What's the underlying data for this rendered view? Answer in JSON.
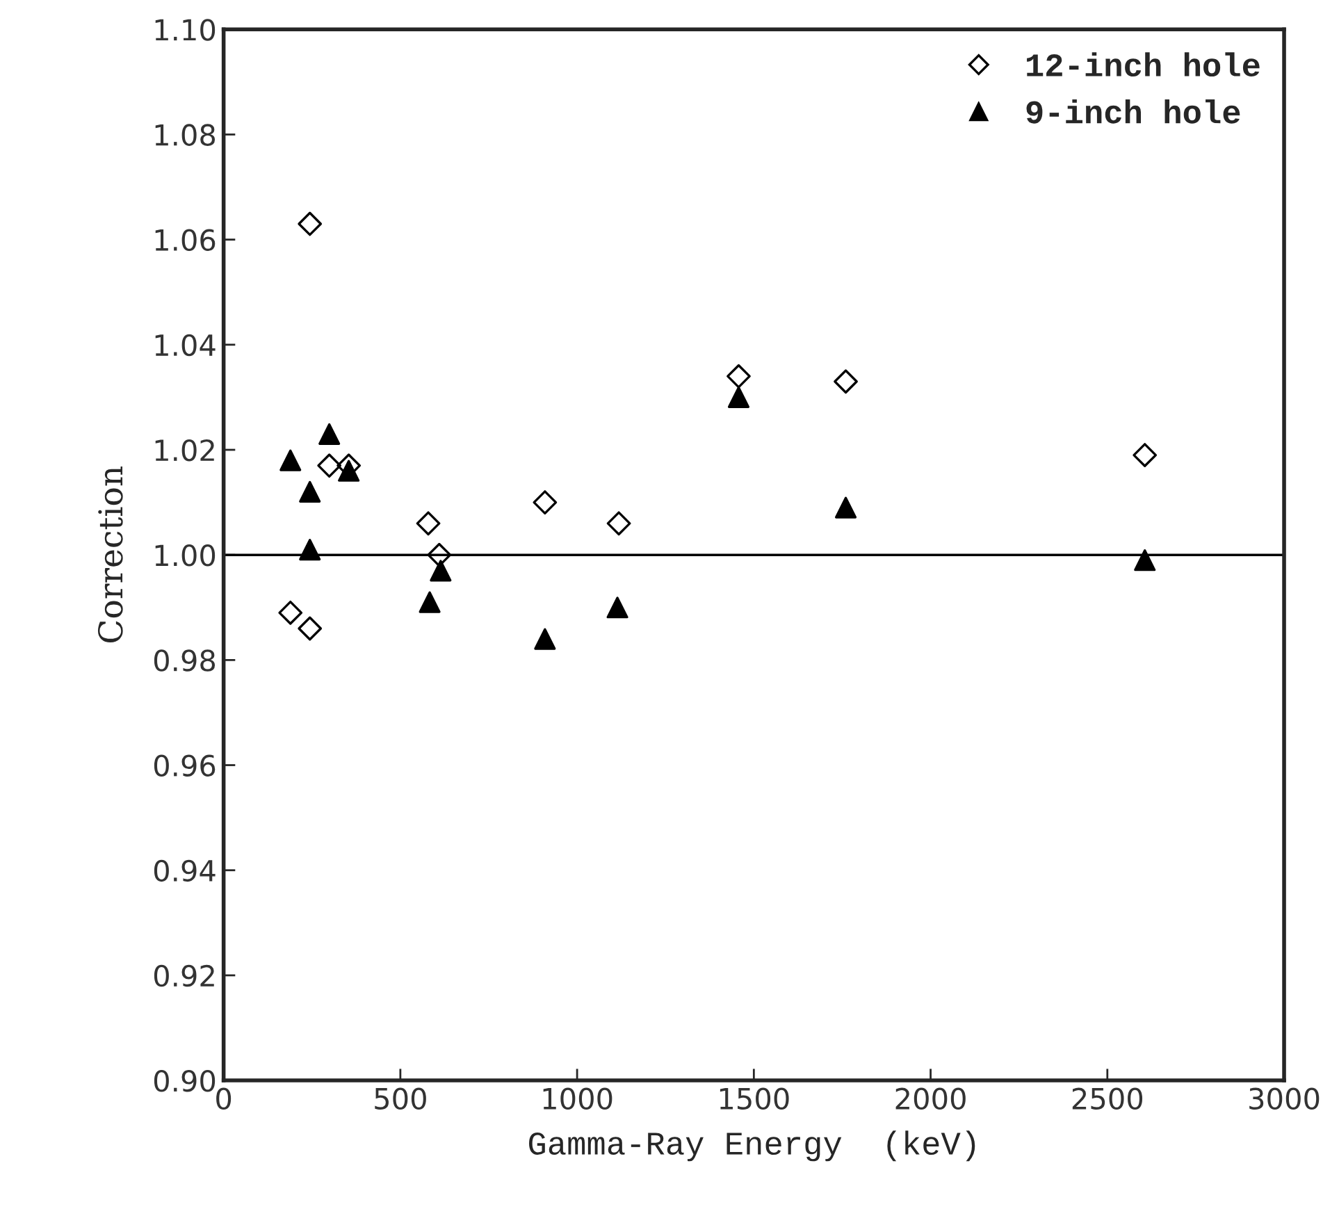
{
  "chart_data": {
    "type": "scatter",
    "xlabel": "Gamma-Ray Energy  (keV)",
    "ylabel": "Correction",
    "xlim": [
      0,
      3000
    ],
    "xticks": [
      0,
      500,
      1000,
      1500,
      2000,
      2500,
      3000
    ],
    "ylim": [
      0.9,
      1.1
    ],
    "yticks": [
      {
        "value": 0.9,
        "label": "0.90"
      },
      {
        "value": 0.92,
        "label": "0.92"
      },
      {
        "value": 0.94,
        "label": "0.94"
      },
      {
        "value": 0.96,
        "label": "0.96"
      },
      {
        "value": 0.98,
        "label": "0.98"
      },
      {
        "value": 1.0,
        "label": "1.00"
      },
      {
        "value": 1.02,
        "label": "1.02"
      },
      {
        "value": 1.04,
        "label": "1.04"
      },
      {
        "value": 1.06,
        "label": "1.06"
      },
      {
        "value": 1.08,
        "label": "1.08"
      },
      {
        "value": 1.1,
        "label": "1.10"
      }
    ],
    "grid": false,
    "legend": "top right",
    "ref_lines": [
      {
        "axis": "y",
        "value": 1.0,
        "color": "#000000",
        "line_style": "solid"
      }
    ],
    "series": [
      {
        "name": "12-inch hole",
        "color": "#000000",
        "marker": "diamond",
        "x": [
          189,
          244,
          244,
          299,
          354,
          579,
          610,
          909,
          1118,
          1457,
          1760,
          2606
        ],
        "values": [
          0.989,
          0.986,
          1.063,
          1.017,
          1.017,
          1.006,
          1.0,
          1.01,
          1.006,
          1.034,
          1.033,
          1.019
        ]
      },
      {
        "name": "9-inch hole",
        "color": "#000000",
        "marker": "triangle",
        "x": [
          189,
          299,
          244,
          354,
          244,
          614,
          583,
          909,
          1114,
          1457,
          1760,
          2606
        ],
        "values": [
          1.018,
          1.023,
          1.012,
          1.016,
          1.001,
          0.997,
          0.991,
          0.984,
          0.99,
          1.03,
          1.009,
          0.999
        ]
      }
    ]
  }
}
